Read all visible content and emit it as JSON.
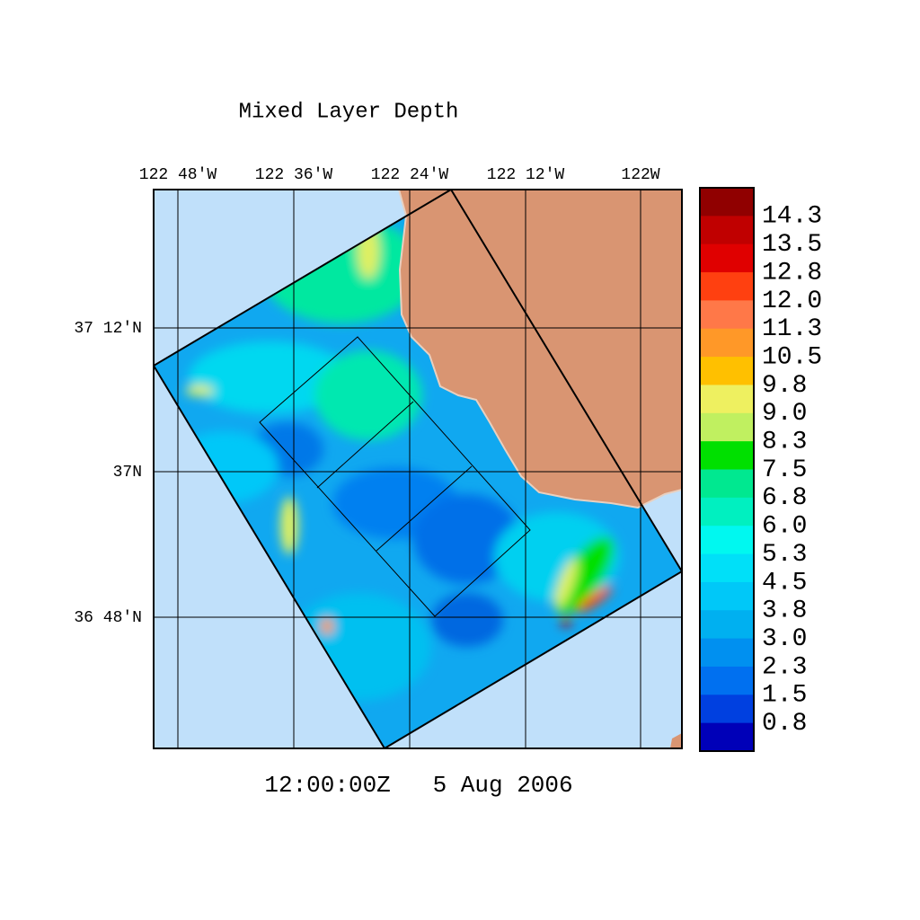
{
  "title": "Mixed Layer Depth",
  "timestamp": "12:00:00Z   5 Aug 2006",
  "lon_labels": [
    "122 48'W",
    "122 36'W",
    "122 24'W",
    "122 12'W",
    "122W"
  ],
  "lat_labels": [
    "37 12'N",
    "37N",
    "36 48'N"
  ],
  "colorbar": {
    "levels": [
      14.3,
      13.5,
      12.8,
      {
        "value": 12,
        "label": "12.0"
      },
      11.3,
      10.5,
      9.8,
      {
        "value": 9,
        "label": "9.0"
      },
      8.3,
      7.5,
      6.8,
      {
        "value": 6,
        "label": "6.0"
      },
      5.3,
      4.5,
      3.8,
      {
        "value": 3,
        "label": "3.0"
      },
      2.3,
      1.5,
      0.8
    ],
    "colors": [
      "#900000",
      "#c00000",
      "#e00000",
      "#ff4010",
      "#ff7848",
      "#ff9828",
      "#ffc000",
      "#eef060",
      "#c0f060",
      "#00e000",
      "#00e890",
      "#00f0c0",
      "#00f8f0",
      "#00e0f8",
      "#00c8f8",
      "#00b0f0",
      "#0090f0",
      "#0070f0",
      "#0040e0",
      "#0000b8"
    ]
  }
}
